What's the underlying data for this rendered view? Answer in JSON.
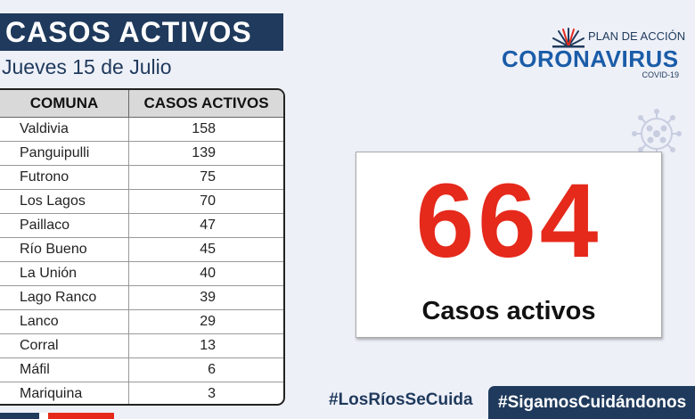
{
  "header": {
    "title": "CASOS ACTIVOS",
    "date": "Jueves 15 de Julio"
  },
  "table": {
    "columns": [
      "COMUNA",
      "CASOS ACTIVOS"
    ],
    "rows": [
      {
        "comuna": "Valdivia",
        "casos": "158"
      },
      {
        "comuna": "Panguipulli",
        "casos": "139"
      },
      {
        "comuna": "Futrono",
        "casos": "75"
      },
      {
        "comuna": "Los Lagos",
        "casos": "70"
      },
      {
        "comuna": "Paillaco",
        "casos": "47"
      },
      {
        "comuna": "Río Bueno",
        "casos": "45"
      },
      {
        "comuna": "La Unión",
        "casos": "40"
      },
      {
        "comuna": "Lago Ranco",
        "casos": "39"
      },
      {
        "comuna": "Lanco",
        "casos": "29"
      },
      {
        "comuna": "Corral",
        "casos": "13"
      },
      {
        "comuna": "Máfil",
        "casos": "6"
      },
      {
        "comuna": "Mariquina",
        "casos": "3"
      }
    ]
  },
  "logo": {
    "plan": "PLAN DE ACCIÓN",
    "name": "CORONAVIRUS",
    "sub": "COVID-19"
  },
  "total": {
    "value": "664",
    "label": "Casos activos"
  },
  "hashtags": {
    "first": "#LosRíosSeCuida",
    "second": "#SigamosCuidándonos"
  },
  "colors": {
    "navy": "#1f3a5c",
    "accent_red": "#e5291b",
    "logo_blue": "#1a5ca8",
    "background": "#eef0f8"
  },
  "icons": [
    "sun-rays-icon",
    "virus-icon"
  ]
}
